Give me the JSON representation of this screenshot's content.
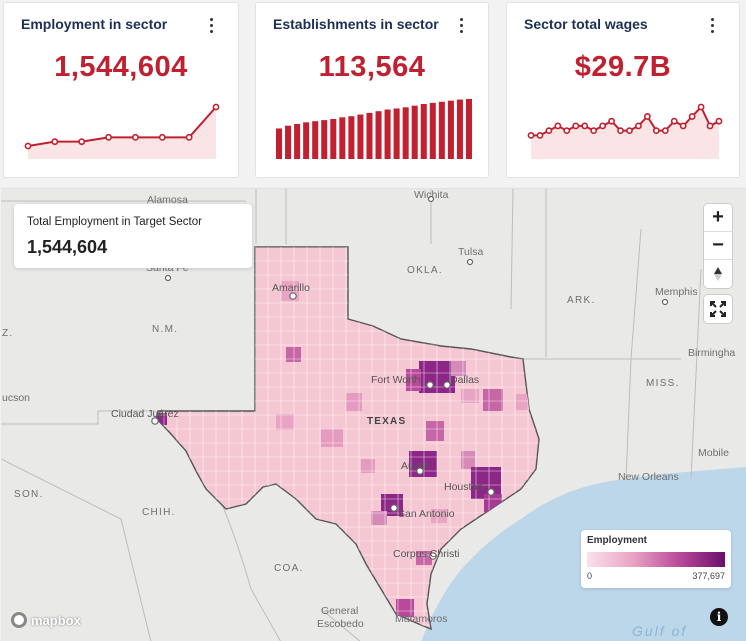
{
  "cards": [
    {
      "title": "Employment in sector",
      "value": "1,544,604",
      "spark_type": "line",
      "series": [
        3,
        4,
        4,
        5,
        5,
        5,
        5,
        12
      ]
    },
    {
      "title": "Establishments in sector",
      "value": "113,564",
      "spark_type": "bar",
      "series": [
        5.5,
        6,
        6.3,
        6.6,
        6.8,
        7,
        7.2,
        7.5,
        7.7,
        8,
        8.3,
        8.6,
        8.9,
        9.1,
        9.3,
        9.6,
        9.9,
        10.1,
        10.3,
        10.5,
        10.7,
        10.8
      ]
    },
    {
      "title": "Sector total wages",
      "value": "$29.7B",
      "spark_type": "line",
      "series": [
        5,
        5,
        6,
        7,
        6,
        7,
        7,
        6,
        7,
        8,
        6,
        6,
        7,
        9,
        6,
        6,
        8,
        7,
        9,
        11,
        7,
        8
      ]
    }
  ],
  "map": {
    "total_label": "Total Employment in Target Sector",
    "total_value": "1,544,604",
    "zoom_in": "+",
    "zoom_out": "−",
    "labels": {
      "alamosa": "Alamosa",
      "wichita": "Wichita",
      "tulsa": "Tulsa",
      "okla": "OKLA.",
      "santafe": "Santa Fe",
      "amarillo": "Amarillo",
      "ark": "ARK.",
      "memphis": "Memphis",
      "nm": "N.M.",
      "birmingham": "Birmingha",
      "fortworth": "Fort Worth",
      "dallas": "Dallas",
      "miss": "MISS.",
      "ucson": "ucson",
      "ciudad": "Ciudad Juárez",
      "texas": "TEXAS",
      "mobile": "Mobile",
      "austin": "Austin",
      "neworleans": "New Orleans",
      "son": "SON.",
      "houston": "Houston",
      "chih": "CHIH.",
      "sanantonio": "San Antonio",
      "corpus": "Corpus Christi",
      "coa": "COA.",
      "general": "General",
      "escobedo": "Escobedo",
      "matamoros": "Matamoros",
      "z": "Z.",
      "gulf": "Gulf of"
    },
    "legend": {
      "title": "Employment",
      "min": "0",
      "max": "377,697"
    },
    "attribution": "mapbox"
  },
  "colors": {
    "accent": "#c0202f",
    "title": "#1c2f55",
    "choropleth_low": "#fbe1ea",
    "choropleth_high": "#6a0f6a"
  }
}
